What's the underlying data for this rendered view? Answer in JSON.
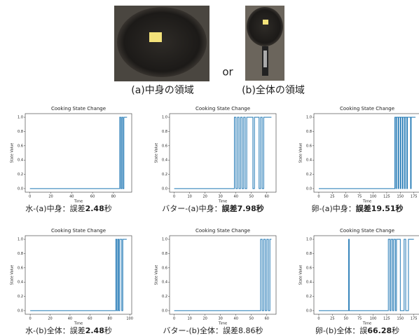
{
  "images": {
    "or": "or",
    "caption_a": "(a)中身の領域",
    "caption_b": "(b)全体の領域"
  },
  "chart_data": [
    {
      "type": "line",
      "title": "Cooking State Change",
      "x_label": "Time",
      "y_label": "State Value",
      "color": "#1f77b4",
      "xlim": [
        -4.5,
        97.5
      ],
      "xticks": [
        0,
        20,
        40,
        60,
        80
      ],
      "ylim": [
        -0.05,
        1.05
      ],
      "yticks": [
        {
          "value": 0,
          "label": "0.0"
        },
        {
          "value": 0.2,
          "label": "0.2"
        },
        {
          "value": 0.4,
          "label": "0.4"
        },
        {
          "value": 0.6,
          "label": "0.6"
        },
        {
          "value": 0.8,
          "label": "0.8"
        },
        {
          "value": 1,
          "label": "1.0"
        }
      ],
      "x": [
        0,
        86,
        86,
        87,
        87,
        88,
        88,
        89,
        89,
        90,
        90,
        93
      ],
      "values": [
        0,
        0,
        1,
        1,
        0,
        0,
        1,
        1,
        0,
        0,
        1,
        1
      ],
      "caption": [
        {
          "text": "水-(a)中身：誤差",
          "bold": false
        },
        {
          "text": "2.48",
          "bold": true
        },
        {
          "text": "秒",
          "bold": false
        }
      ]
    },
    {
      "type": "line",
      "title": "Cooking State Change",
      "x_label": "Time",
      "y_label": "State Value",
      "color": "#1f77b4",
      "xlim": [
        -3,
        66
      ],
      "xticks": [
        0,
        10,
        20,
        30,
        40,
        50,
        60
      ],
      "ylim": [
        -0.05,
        1.05
      ],
      "yticks": [
        {
          "value": 0,
          "label": "0.0"
        },
        {
          "value": 0.2,
          "label": "0.2"
        },
        {
          "value": 0.4,
          "label": "0.4"
        },
        {
          "value": 0.6,
          "label": "0.6"
        },
        {
          "value": 0.8,
          "label": "0.8"
        },
        {
          "value": 1,
          "label": "1.0"
        }
      ],
      "x": [
        0,
        39,
        39,
        40,
        40,
        41,
        41,
        42,
        42,
        43,
        43,
        44,
        44,
        45,
        45,
        46,
        46,
        47,
        47,
        51,
        51,
        52,
        52,
        55,
        55,
        56,
        56,
        57,
        57,
        58,
        58,
        63
      ],
      "values": [
        0,
        0,
        1,
        1,
        0,
        0,
        1,
        1,
        0,
        0,
        1,
        1,
        0,
        0,
        1,
        1,
        0,
        0,
        1,
        1,
        0,
        0,
        1,
        1,
        0,
        0,
        1,
        1,
        0,
        0,
        1,
        1
      ],
      "caption": [
        {
          "text": "バター-(a)中身：",
          "bold": false
        },
        {
          "text": "誤差7.98秒",
          "bold": true
        }
      ]
    },
    {
      "type": "line",
      "title": "Cooking State Change",
      "x_label": "Time",
      "y_label": "State Value",
      "color": "#1f77b4",
      "xlim": [
        -9,
        187
      ],
      "xticks": [
        0,
        25,
        50,
        75,
        100,
        125,
        150,
        175
      ],
      "ylim": [
        -0.05,
        1.05
      ],
      "yticks": [
        {
          "value": 0,
          "label": "0.0"
        },
        {
          "value": 0.2,
          "label": "0.2"
        },
        {
          "value": 0.4,
          "label": "0.4"
        },
        {
          "value": 0.6,
          "label": "0.6"
        },
        {
          "value": 0.8,
          "label": "0.8"
        },
        {
          "value": 1,
          "label": "1.0"
        }
      ],
      "x": [
        0,
        140,
        140,
        142,
        142,
        143,
        143,
        146,
        146,
        147,
        147,
        150,
        150,
        151,
        151,
        154,
        154,
        155,
        155,
        158,
        158,
        159,
        159,
        162,
        162,
        163,
        163,
        169,
        169,
        170,
        170,
        178
      ],
      "values": [
        0,
        0,
        1,
        1,
        0,
        0,
        1,
        1,
        0,
        0,
        1,
        1,
        0,
        0,
        1,
        1,
        0,
        0,
        1,
        1,
        0,
        0,
        1,
        1,
        0,
        0,
        1,
        1,
        0,
        0,
        1,
        1
      ],
      "caption": [
        {
          "text": "卵-(a)中身：",
          "bold": false
        },
        {
          "text": "誤差19.51秒",
          "bold": true
        }
      ]
    },
    {
      "type": "line",
      "title": "Cooking State Change",
      "x_label": "Time",
      "y_label": "State Value",
      "color": "#1f77b4",
      "xlim": [
        -5,
        102
      ],
      "xticks": [
        0,
        20,
        40,
        60,
        80,
        100
      ],
      "ylim": [
        -0.05,
        1.05
      ],
      "yticks": [
        {
          "value": 0,
          "label": "0.0"
        },
        {
          "value": 0.2,
          "label": "0.2"
        },
        {
          "value": 0.4,
          "label": "0.4"
        },
        {
          "value": 0.6,
          "label": "0.6"
        },
        {
          "value": 0.8,
          "label": "0.8"
        },
        {
          "value": 1,
          "label": "1.0"
        }
      ],
      "x": [
        0,
        86,
        86,
        87,
        87,
        88,
        88,
        89,
        89,
        90,
        90,
        92,
        92,
        93,
        93,
        97
      ],
      "values": [
        0,
        0,
        1,
        1,
        0,
        0,
        1,
        1,
        0,
        0,
        1,
        1,
        0,
        0,
        1,
        1
      ],
      "caption": [
        {
          "text": "水-(b)全体：誤差",
          "bold": false
        },
        {
          "text": "2.48",
          "bold": true
        },
        {
          "text": "秒",
          "bold": false
        }
      ]
    },
    {
      "type": "line",
      "title": "Cooking State Change",
      "x_label": "Time",
      "y_label": "State Value",
      "color": "#1f77b4",
      "xlim": [
        -3,
        66
      ],
      "xticks": [
        0,
        10,
        20,
        30,
        40,
        50,
        60
      ],
      "ylim": [
        -0.05,
        1.05
      ],
      "yticks": [
        {
          "value": 0,
          "label": "0.0"
        },
        {
          "value": 0.2,
          "label": "0.2"
        },
        {
          "value": 0.4,
          "label": "0.4"
        },
        {
          "value": 0.6,
          "label": "0.6"
        },
        {
          "value": 0.8,
          "label": "0.8"
        },
        {
          "value": 1,
          "label": "1.0"
        }
      ],
      "x": [
        0,
        56,
        56,
        57,
        57,
        58,
        58,
        59,
        59,
        60,
        60,
        61,
        61,
        62,
        62,
        63
      ],
      "values": [
        0,
        0,
        1,
        1,
        0,
        0,
        1,
        1,
        0,
        0,
        1,
        1,
        0,
        0,
        1,
        1
      ],
      "caption": [
        {
          "text": "バター-(b)全体：誤差8.86秒",
          "bold": false
        }
      ]
    },
    {
      "type": "line",
      "title": "Cooking State Change",
      "x_label": "Time",
      "y_label": "State Value",
      "color": "#1f77b4",
      "xlim": [
        -9,
        187
      ],
      "xticks": [
        0,
        25,
        50,
        75,
        100,
        125,
        150,
        175
      ],
      "ylim": [
        -0.05,
        1.05
      ],
      "yticks": [
        {
          "value": 0,
          "label": "0.0"
        },
        {
          "value": 0.2,
          "label": "0.2"
        },
        {
          "value": 0.4,
          "label": "0.4"
        },
        {
          "value": 0.6,
          "label": "0.6"
        },
        {
          "value": 0.8,
          "label": "0.8"
        },
        {
          "value": 1,
          "label": "1.0"
        }
      ],
      "x": [
        0,
        55,
        55,
        56,
        56,
        128,
        128,
        131,
        131,
        133,
        133,
        136,
        136,
        138,
        138,
        141,
        141,
        143,
        143,
        150,
        150,
        157,
        157,
        160,
        160,
        165,
        165,
        175
      ],
      "values": [
        0,
        0,
        1,
        1,
        0,
        0,
        1,
        1,
        0,
        0,
        1,
        1,
        0,
        0,
        1,
        1,
        0,
        0,
        1,
        1,
        0,
        0,
        1,
        1,
        0,
        0,
        1,
        1
      ],
      "caption": [
        {
          "text": "卵-(b)全体：誤",
          "bold": false
        },
        {
          "text": "66.28",
          "bold": true
        },
        {
          "text": "秒",
          "bold": false
        }
      ]
    }
  ]
}
